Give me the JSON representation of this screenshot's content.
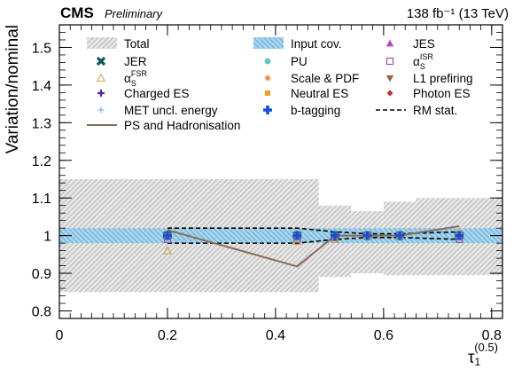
{
  "header": {
    "experiment": "CMS",
    "status": "Preliminary",
    "lumi": "138 fb⁻¹ (13 TeV)"
  },
  "chart_data": {
    "type": "line",
    "xlabel_main": "τ",
    "xlabel_sub": "1",
    "xlabel_sup": "(0.5)",
    "ylabel": "Variation/nominal",
    "xlim": [
      0,
      0.82
    ],
    "ylim": [
      0.78,
      1.56
    ],
    "x_ticks": [
      0,
      0.2,
      0.4,
      0.6,
      0.8
    ],
    "x_tick_labels": [
      "0",
      "0.2",
      "0.4",
      "0.6",
      "0.8"
    ],
    "y_ticks": [
      0.8,
      0.9,
      1.0,
      1.1,
      1.2,
      1.3,
      1.4,
      1.5
    ],
    "y_tick_labels": [
      "0.8",
      "0.9",
      "1",
      "1.1",
      "1.2",
      "1.3",
      "1.4",
      "1.5"
    ],
    "bins": [
      0,
      0.48,
      0.54,
      0.6,
      0.66,
      0.82
    ],
    "total_band": [
      [
        0.85,
        1.15
      ],
      [
        0.89,
        1.08
      ],
      [
        0.9,
        1.065
      ],
      [
        0.895,
        1.09
      ],
      [
        0.895,
        1.1
      ]
    ],
    "input_cov_band": [
      [
        0.98,
        1.02
      ],
      [
        0.98,
        1.02
      ],
      [
        0.98,
        1.02
      ],
      [
        0.98,
        1.02
      ],
      [
        0.98,
        1.02
      ]
    ],
    "rm_stat": {
      "x": [
        0.2,
        0.44,
        0.51,
        0.57,
        0.63,
        0.74
      ],
      "upper": [
        1.02,
        1.02,
        1.01,
        1.005,
        1.005,
        1.01
      ],
      "lower": [
        0.98,
        0.98,
        0.99,
        0.995,
        0.995,
        0.99
      ]
    },
    "series": [
      {
        "name": "Total",
        "legend_col": 0,
        "legend_row": 0,
        "kind": "band-gray"
      },
      {
        "name": "Input cov.",
        "legend_col": 1,
        "legend_row": 0,
        "kind": "band-blue"
      },
      {
        "name": "JES",
        "legend_col": 2,
        "legend_row": 0,
        "kind": "marker",
        "marker": "triangle-up",
        "color": "#c040c0",
        "x": [
          0.2,
          0.44,
          0.51,
          0.57,
          0.63,
          0.74
        ],
        "values": [
          1.005,
          1.005,
          1.0,
          1.0,
          1.0,
          1.005
        ]
      },
      {
        "name": "JER",
        "legend_col": 0,
        "legend_row": 1,
        "kind": "marker",
        "marker": "cross-x",
        "color": "#0a5a5a",
        "x": [
          0.2,
          0.44,
          0.51,
          0.57,
          0.63,
          0.74
        ],
        "values": [
          1.0,
          1.0,
          1.0,
          1.0,
          1.0,
          1.0
        ]
      },
      {
        "name": "PU",
        "legend_col": 1,
        "legend_row": 1,
        "kind": "marker",
        "marker": "circle",
        "color": "#5fc8c8",
        "x": [
          0.2,
          0.44,
          0.51,
          0.57,
          0.63,
          0.74
        ],
        "values": [
          1.0,
          1.0,
          1.0,
          1.0,
          1.0,
          1.0
        ]
      },
      {
        "name": "α",
        "sub": "S",
        "sup": "ISR",
        "legend_col": 2,
        "legend_row": 1,
        "kind": "marker",
        "marker": "square-open",
        "color": "#a050a0",
        "x": [
          0.2,
          0.44,
          0.51,
          0.57,
          0.63,
          0.74
        ],
        "values": [
          0.99,
          0.99,
          0.995,
          1.0,
          1.0,
          0.99
        ]
      },
      {
        "name": "α",
        "sub": "S",
        "sup": "FSR",
        "legend_col": 0,
        "legend_row": 2,
        "kind": "marker",
        "marker": "triangle-open",
        "color": "#c8a040",
        "x": [
          0.2,
          0.44,
          0.51,
          0.57,
          0.63,
          0.74
        ],
        "values": [
          0.96,
          0.985,
          0.99,
          1.0,
          1.0,
          1.01
        ]
      },
      {
        "name": "Scale & PDF",
        "legend_col": 1,
        "legend_row": 2,
        "kind": "marker",
        "marker": "star",
        "color": "#e08030",
        "x": [
          0.2,
          0.44,
          0.51,
          0.57,
          0.63,
          0.74
        ],
        "values": [
          1.0,
          1.0,
          1.0,
          1.0,
          1.0,
          1.0
        ]
      },
      {
        "name": "L1 prefiring",
        "legend_col": 2,
        "legend_row": 2,
        "kind": "marker",
        "marker": "triangle-down",
        "color": "#a06040",
        "x": [
          0.2,
          0.44,
          0.51,
          0.57,
          0.63,
          0.74
        ],
        "values": [
          1.0,
          1.0,
          1.0,
          1.0,
          1.0,
          1.0
        ]
      },
      {
        "name": "Charged ES",
        "legend_col": 0,
        "legend_row": 3,
        "kind": "marker",
        "marker": "plus",
        "color": "#6020a0",
        "x": [
          0.2,
          0.44,
          0.51,
          0.57,
          0.63,
          0.74
        ],
        "values": [
          1.0,
          1.0,
          1.0,
          1.0,
          1.0,
          1.0
        ]
      },
      {
        "name": "Neutral ES",
        "legend_col": 1,
        "legend_row": 3,
        "kind": "marker",
        "marker": "square",
        "color": "#f0a020",
        "x": [
          0.2,
          0.44,
          0.51,
          0.57,
          0.63,
          0.74
        ],
        "values": [
          1.0,
          1.0,
          1.0,
          1.0,
          1.0,
          1.0
        ]
      },
      {
        "name": "Photon ES",
        "legend_col": 2,
        "legend_row": 3,
        "kind": "marker",
        "marker": "diamond-small",
        "color": "#c03030",
        "x": [
          0.2,
          0.44,
          0.51,
          0.57,
          0.63,
          0.74
        ],
        "values": [
          1.0,
          1.0,
          1.0,
          1.0,
          1.0,
          1.0
        ]
      },
      {
        "name": "MET uncl. energy",
        "legend_col": 0,
        "legend_row": 4,
        "kind": "marker",
        "marker": "plus-thin",
        "color": "#70a0e0",
        "x": [
          0.2,
          0.44,
          0.51,
          0.57,
          0.63,
          0.74
        ],
        "values": [
          1.0,
          1.0,
          1.0,
          1.0,
          1.0,
          1.0
        ]
      },
      {
        "name": "b-tagging",
        "legend_col": 1,
        "legend_row": 4,
        "kind": "marker",
        "marker": "cross-bold",
        "color": "#1050e0",
        "x": [
          0.2,
          0.44,
          0.51,
          0.57,
          0.63,
          0.74
        ],
        "values": [
          1.0,
          1.0,
          1.0,
          1.0,
          1.0,
          1.0
        ]
      },
      {
        "name": "RM stat.",
        "legend_col": 2,
        "legend_row": 4,
        "kind": "dashed"
      },
      {
        "name": "PS and Hadronisation",
        "legend_col": 0,
        "legend_row": 5,
        "kind": "line",
        "color": "#8a6a5a",
        "x": [
          0.2,
          0.44,
          0.51,
          0.57,
          0.63,
          0.74
        ],
        "values": [
          1.015,
          0.918,
          1.0,
          1.0,
          1.0,
          1.025
        ]
      }
    ],
    "legend_placement": "top",
    "grid": false
  }
}
